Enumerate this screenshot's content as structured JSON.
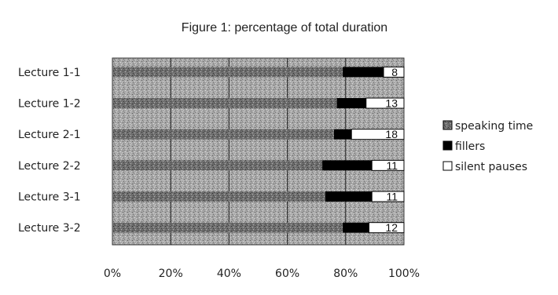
{
  "chart_data": {
    "type": "bar",
    "orientation": "horizontal",
    "stacked": true,
    "title": "Figure 1: percentage of total duration",
    "xlabel": "",
    "ylabel": "",
    "xlim": [
      0,
      100
    ],
    "x_ticks": [
      "0%",
      "20%",
      "40%",
      "60%",
      "80%",
      "100%"
    ],
    "categories": [
      "Lecture 1-1",
      "Lecture 1-2",
      "Lecture 2-1",
      "Lecture 2-2",
      "Lecture 3-1",
      "Lecture 3-2"
    ],
    "series": [
      {
        "name": "speaking time",
        "values": [
          79,
          77,
          76,
          72,
          73,
          79
        ],
        "color": "#9a9a9a"
      },
      {
        "name": "fillers",
        "values": [
          14,
          10,
          6,
          17,
          16,
          9
        ],
        "color": "#000000"
      },
      {
        "name": "silent pauses",
        "values": [
          8,
          13,
          18,
          11,
          11,
          12
        ],
        "color": "#ffffff"
      }
    ],
    "data_labels": [
      "8",
      "13",
      "18",
      "11",
      "11",
      "12"
    ],
    "grid": true,
    "legend_position": "right"
  }
}
